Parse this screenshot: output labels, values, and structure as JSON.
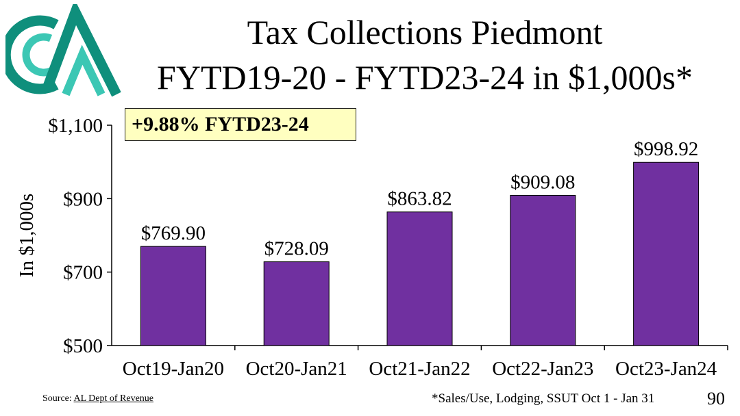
{
  "header": {
    "title_line1": "Tax Collections Piedmont",
    "title_line2": "FYTD19-20 - FYTD23-24 in $1,000s*"
  },
  "callout": "+9.88% FYTD23-24",
  "footer": {
    "source_prefix": "Source: ",
    "source_link": "AL Dept of Revenue",
    "footnote": "*Sales/Use, Lodging, SSUT Oct 1 - Jan 31",
    "page_number": "90"
  },
  "colors": {
    "bar": "#7030a0",
    "callout_bg": "#ffffc0",
    "logo_dark": "#0f8f7c",
    "logo_light": "#3cc7b4"
  },
  "chart_data": {
    "type": "bar",
    "categories": [
      "Oct19-Jan20",
      "Oct20-Jan21",
      "Oct21-Jan22",
      "Oct22-Jan23",
      "Oct23-Jan24"
    ],
    "values": [
      769.9,
      728.09,
      863.82,
      909.08,
      998.92
    ],
    "value_labels": [
      "$769.90",
      "$728.09",
      "$863.82",
      "$909.08",
      "$998.92"
    ],
    "ylabel": "In $1,000s",
    "ylim": [
      500,
      1100
    ],
    "yticks": [
      500,
      700,
      900,
      1100
    ],
    "ytick_labels": [
      "$500",
      "$700",
      "$900",
      "$1,100"
    ],
    "grid": false,
    "legend": "none"
  }
}
